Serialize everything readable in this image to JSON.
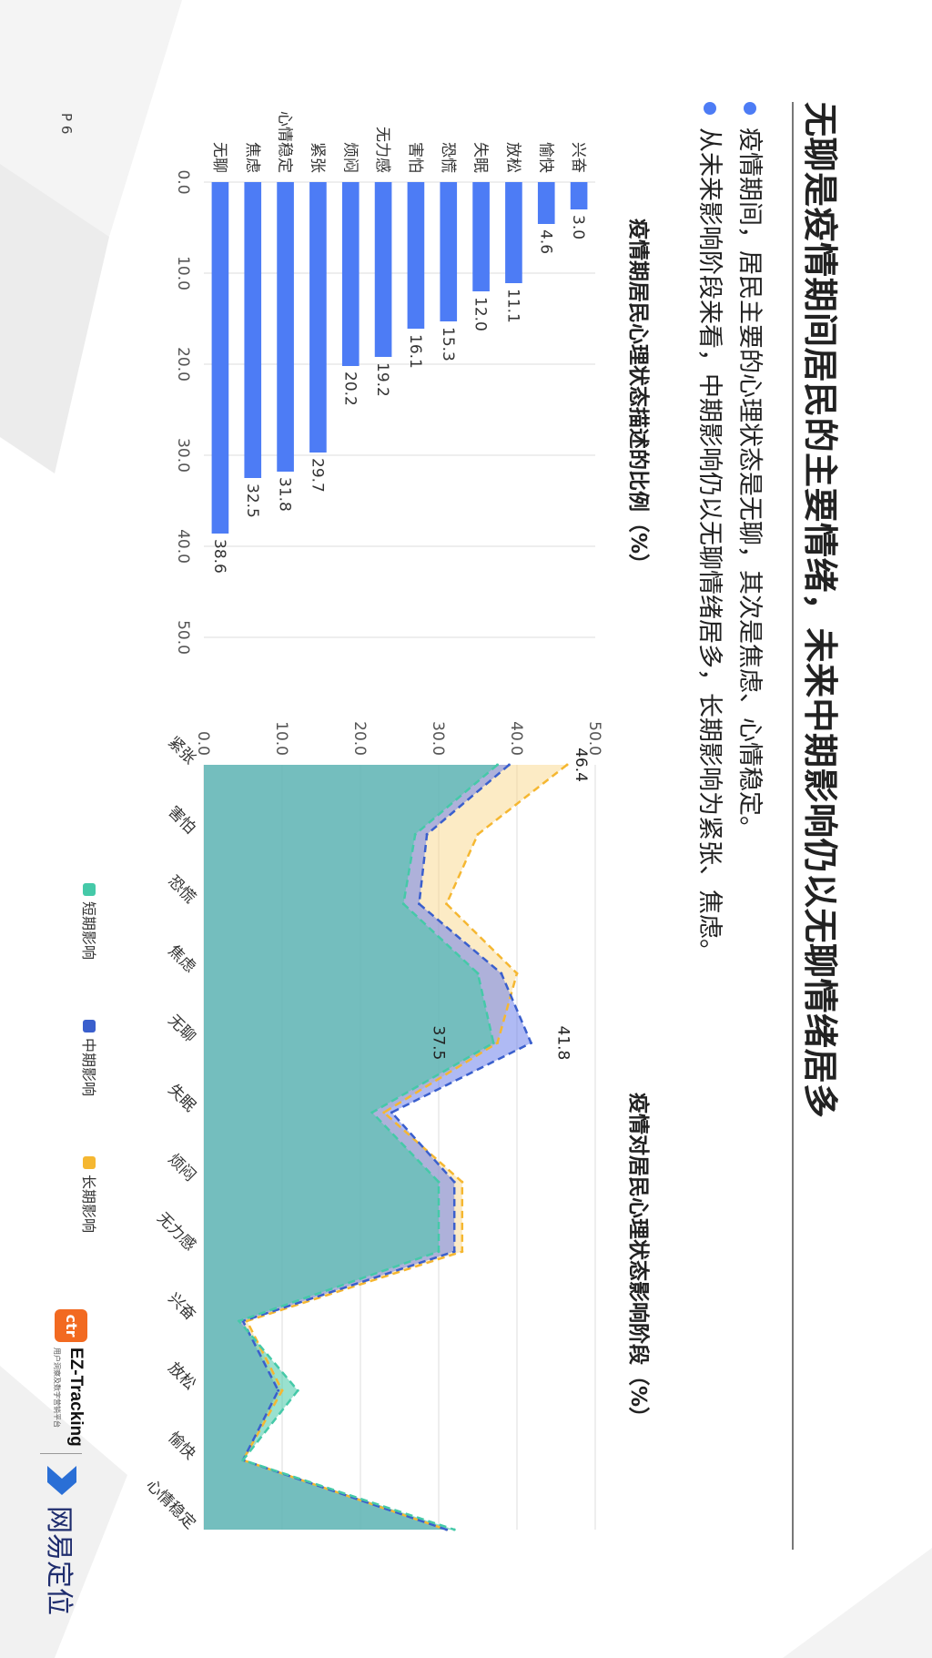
{
  "page": {
    "title": "无聊是疫情期间居民的主要情绪，未来中期影响仍以无聊情绪居多",
    "bullets": [
      "疫情期间，居民主要的心理状态是无聊，其次是焦虑、心情稳定。",
      "从未来影响阶段来看，中期影响仍以无聊情绪居多，长期影响为紧张、焦虑。"
    ],
    "page_number": "P 6",
    "logos": {
      "ez_icon": "ctr",
      "ez_name": "EZ-Tracking",
      "ez_sub": "用户洞察及数字营销平台",
      "netease": "网易定位"
    },
    "accent_color": "#4d7cf5"
  },
  "chart_data": [
    {
      "type": "bar",
      "title": "疫情期居民心理状态描述的比例（%）",
      "orientation": "horizontal",
      "categories": [
        "无聊",
        "焦虑",
        "心情稳定",
        "紧张",
        "烦闷",
        "无力感",
        "害怕",
        "恐慌",
        "失眠",
        "放松",
        "愉快",
        "兴奋"
      ],
      "values": [
        38.6,
        32.5,
        31.8,
        29.7,
        20.2,
        19.2,
        16.1,
        15.3,
        12.0,
        11.1,
        4.6,
        3.0
      ],
      "value_labels": [
        "38.6",
        "32.5",
        "31.8",
        "29.7",
        "20.2",
        "19.2",
        "16.1",
        "15.3",
        "12.0",
        "11.1",
        "4.6",
        "3.0"
      ],
      "xlim": [
        0,
        50
      ],
      "ticks": [
        "0.0",
        "10.0",
        "20.0",
        "30.0",
        "40.0",
        "50.0"
      ],
      "color": "#4d7cf5",
      "grid": true
    },
    {
      "type": "area",
      "title": "疫情对居民心理状态影响阶段（%）",
      "categories": [
        "紧张",
        "害怕",
        "恐慌",
        "焦虑",
        "无聊",
        "失眠",
        "烦闷",
        "无力感",
        "兴奋",
        "放松",
        "愉快",
        "心情稳定"
      ],
      "ylim": [
        0,
        50
      ],
      "ticks": [
        "0.0",
        "10.0",
        "20.0",
        "30.0",
        "40.0",
        "50.0"
      ],
      "series": [
        {
          "name": "长期影响",
          "color": "#f5b731",
          "values": [
            46.4,
            35.0,
            31.0,
            40.0,
            37.5,
            23.0,
            33.0,
            33.0,
            5.5,
            10.0,
            5.0,
            31.0
          ]
        },
        {
          "name": "中期影响",
          "color": "#3a5fcd",
          "values": [
            39.0,
            28.5,
            27.5,
            38.0,
            41.8,
            24.0,
            32.0,
            32.0,
            5.0,
            9.5,
            5.0,
            31.0
          ]
        },
        {
          "name": "短期影响",
          "color": "#45c9a8",
          "values": [
            37.5,
            27.0,
            25.5,
            35.0,
            37.0,
            21.5,
            30.0,
            30.0,
            4.5,
            12.0,
            5.0,
            32.0
          ]
        }
      ],
      "annotations": [
        {
          "category": "紧张",
          "label": "46.4"
        },
        {
          "category": "无聊",
          "label": "41.8"
        },
        {
          "category": "无聊",
          "label": "37.5"
        }
      ],
      "legend": [
        "短期影响",
        "中期影响",
        "长期影响"
      ],
      "legend_position": "bottom",
      "grid": true
    }
  ]
}
